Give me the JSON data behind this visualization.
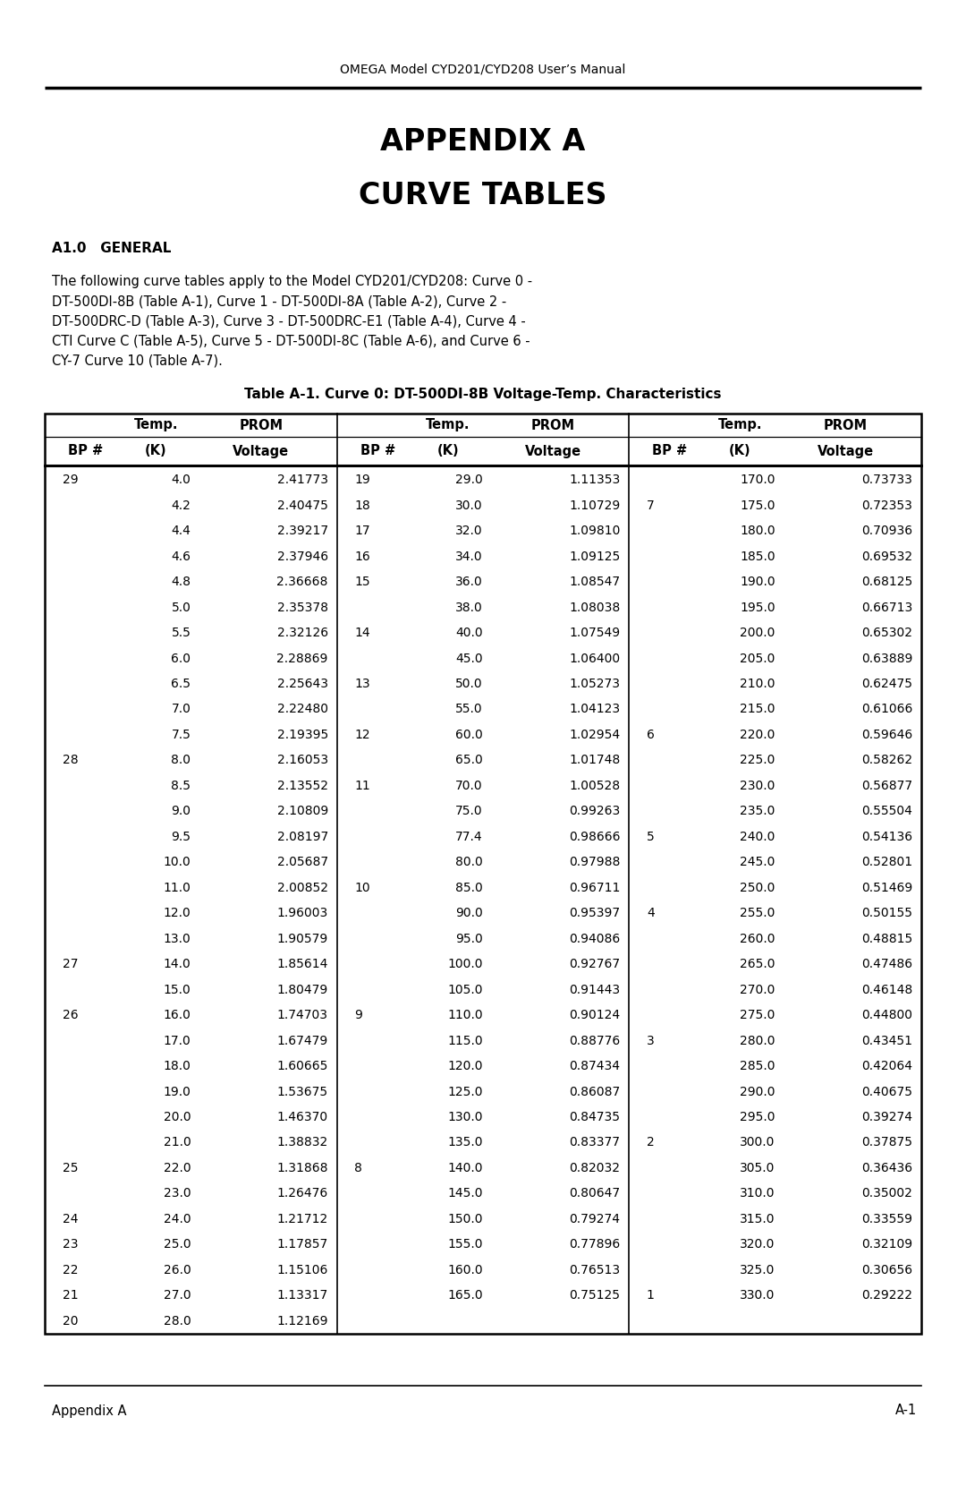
{
  "header_text": "OMEGA Model CYD201/CYD208 User’s Manual",
  "title1": "APPENDIX A",
  "title2": "CURVE TABLES",
  "section": "A1.0   GENERAL",
  "body_text": "The following curve tables apply to the Model CYD201/CYD208: Curve 0 -\nDT-500DI-8B (Table A-1), Curve 1 - DT-500DI-8A (Table A-2), Curve 2 -\nDT-500DRC-D (Table A-3), Curve 3 - DT-500DRC-E1 (Table A-4), Curve 4 -\nCTI Curve C (Table A-5), Curve 5 - DT-500DI-8C (Table A-6), and Curve 6 -\nCY-7 Curve 10 (Table A-7).",
  "table_title": "Table A-1. Curve 0: DT-500DI-8B Voltage-Temp. Characteristics",
  "footer_left": "Appendix A",
  "footer_right": "A-1",
  "col1_data": [
    [
      "29",
      "4.0",
      "2.41773"
    ],
    [
      "",
      "4.2",
      "2.40475"
    ],
    [
      "",
      "4.4",
      "2.39217"
    ],
    [
      "",
      "4.6",
      "2.37946"
    ],
    [
      "",
      "4.8",
      "2.36668"
    ],
    [
      "",
      "5.0",
      "2.35378"
    ],
    [
      "",
      "5.5",
      "2.32126"
    ],
    [
      "",
      "6.0",
      "2.28869"
    ],
    [
      "",
      "6.5",
      "2.25643"
    ],
    [
      "",
      "7.0",
      "2.22480"
    ],
    [
      "",
      "7.5",
      "2.19395"
    ],
    [
      "28",
      "8.0",
      "2.16053"
    ],
    [
      "",
      "8.5",
      "2.13552"
    ],
    [
      "",
      "9.0",
      "2.10809"
    ],
    [
      "",
      "9.5",
      "2.08197"
    ],
    [
      "",
      "10.0",
      "2.05687"
    ],
    [
      "",
      "11.0",
      "2.00852"
    ],
    [
      "",
      "12.0",
      "1.96003"
    ],
    [
      "",
      "13.0",
      "1.90579"
    ],
    [
      "27",
      "14.0",
      "1.85614"
    ],
    [
      "",
      "15.0",
      "1.80479"
    ],
    [
      "26",
      "16.0",
      "1.74703"
    ],
    [
      "",
      "17.0",
      "1.67479"
    ],
    [
      "",
      "18.0",
      "1.60665"
    ],
    [
      "",
      "19.0",
      "1.53675"
    ],
    [
      "",
      "20.0",
      "1.46370"
    ],
    [
      "",
      "21.0",
      "1.38832"
    ],
    [
      "25",
      "22.0",
      "1.31868"
    ],
    [
      "",
      "23.0",
      "1.26476"
    ],
    [
      "24",
      "24.0",
      "1.21712"
    ],
    [
      "23",
      "25.0",
      "1.17857"
    ],
    [
      "22",
      "26.0",
      "1.15106"
    ],
    [
      "21",
      "27.0",
      "1.13317"
    ],
    [
      "20",
      "28.0",
      "1.12169"
    ]
  ],
  "col2_data": [
    [
      "19",
      "29.0",
      "1.11353"
    ],
    [
      "18",
      "30.0",
      "1.10729"
    ],
    [
      "17",
      "32.0",
      "1.09810"
    ],
    [
      "16",
      "34.0",
      "1.09125"
    ],
    [
      "15",
      "36.0",
      "1.08547"
    ],
    [
      "",
      "38.0",
      "1.08038"
    ],
    [
      "14",
      "40.0",
      "1.07549"
    ],
    [
      "",
      "45.0",
      "1.06400"
    ],
    [
      "13",
      "50.0",
      "1.05273"
    ],
    [
      "",
      "55.0",
      "1.04123"
    ],
    [
      "12",
      "60.0",
      "1.02954"
    ],
    [
      "",
      "65.0",
      "1.01748"
    ],
    [
      "11",
      "70.0",
      "1.00528"
    ],
    [
      "",
      "75.0",
      "0.99263"
    ],
    [
      "",
      "77.4",
      "0.98666"
    ],
    [
      "",
      "80.0",
      "0.97988"
    ],
    [
      "10",
      "85.0",
      "0.96711"
    ],
    [
      "",
      "90.0",
      "0.95397"
    ],
    [
      "",
      "95.0",
      "0.94086"
    ],
    [
      "",
      "100.0",
      "0.92767"
    ],
    [
      "",
      "105.0",
      "0.91443"
    ],
    [
      "9",
      "110.0",
      "0.90124"
    ],
    [
      "",
      "115.0",
      "0.88776"
    ],
    [
      "",
      "120.0",
      "0.87434"
    ],
    [
      "",
      "125.0",
      "0.86087"
    ],
    [
      "",
      "130.0",
      "0.84735"
    ],
    [
      "",
      "135.0",
      "0.83377"
    ],
    [
      "8",
      "140.0",
      "0.82032"
    ],
    [
      "",
      "145.0",
      "0.80647"
    ],
    [
      "",
      "150.0",
      "0.79274"
    ],
    [
      "",
      "155.0",
      "0.77896"
    ],
    [
      "",
      "160.0",
      "0.76513"
    ],
    [
      "",
      "165.0",
      "0.75125"
    ]
  ],
  "col3_data": [
    [
      "",
      "170.0",
      "0.73733"
    ],
    [
      "7",
      "175.0",
      "0.72353"
    ],
    [
      "",
      "180.0",
      "0.70936"
    ],
    [
      "",
      "185.0",
      "0.69532"
    ],
    [
      "",
      "190.0",
      "0.68125"
    ],
    [
      "",
      "195.0",
      "0.66713"
    ],
    [
      "",
      "200.0",
      "0.65302"
    ],
    [
      "",
      "205.0",
      "0.63889"
    ],
    [
      "",
      "210.0",
      "0.62475"
    ],
    [
      "",
      "215.0",
      "0.61066"
    ],
    [
      "6",
      "220.0",
      "0.59646"
    ],
    [
      "",
      "225.0",
      "0.58262"
    ],
    [
      "",
      "230.0",
      "0.56877"
    ],
    [
      "",
      "235.0",
      "0.55504"
    ],
    [
      "5",
      "240.0",
      "0.54136"
    ],
    [
      "",
      "245.0",
      "0.52801"
    ],
    [
      "",
      "250.0",
      "0.51469"
    ],
    [
      "4",
      "255.0",
      "0.50155"
    ],
    [
      "",
      "260.0",
      "0.48815"
    ],
    [
      "",
      "265.0",
      "0.47486"
    ],
    [
      "",
      "270.0",
      "0.46148"
    ],
    [
      "",
      "275.0",
      "0.44800"
    ],
    [
      "3",
      "280.0",
      "0.43451"
    ],
    [
      "",
      "285.0",
      "0.42064"
    ],
    [
      "",
      "290.0",
      "0.40675"
    ],
    [
      "",
      "295.0",
      "0.39274"
    ],
    [
      "2",
      "300.0",
      "0.37875"
    ],
    [
      "",
      "305.0",
      "0.36436"
    ],
    [
      "",
      "310.0",
      "0.35002"
    ],
    [
      "",
      "315.0",
      "0.33559"
    ],
    [
      "",
      "320.0",
      "0.32109"
    ],
    [
      "",
      "325.0",
      "0.30656"
    ],
    [
      "1",
      "330.0",
      "0.29222"
    ]
  ],
  "bg_color": "#ffffff",
  "text_color": "#000000",
  "header_fontsize": 10,
  "title_fontsize": 24,
  "section_fontsize": 11,
  "body_fontsize": 10.5,
  "table_title_fontsize": 11,
  "col_header_fontsize": 10.5,
  "data_fontsize": 10,
  "footer_fontsize": 10.5
}
